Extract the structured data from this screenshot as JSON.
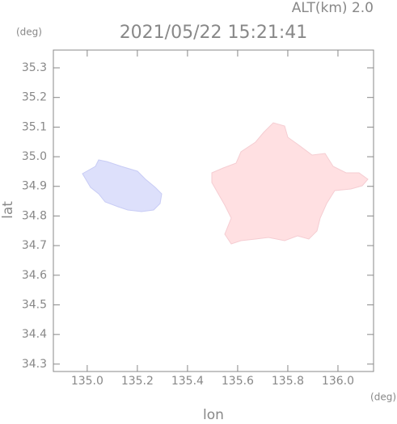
{
  "chart_data": {
    "type": "map",
    "title": "2021/05/22 15:21:41",
    "subtitle": "ALT(km) 2.0",
    "xlabel": "lon",
    "ylabel": "lat",
    "xunit": "(deg)",
    "yunit": "(deg)",
    "xlim": [
      134.865,
      136.142
    ],
    "ylim": [
      34.275,
      35.36
    ],
    "xticks": [
      {
        "value": 135,
        "label": "135.0"
      },
      135.2,
      135.4,
      135.6,
      135.8,
      {
        "value": 136,
        "label": "136.0"
      }
    ],
    "yticks": [
      34.3,
      34.4,
      34.5,
      34.6,
      34.7,
      34.8,
      34.9,
      {
        "value": 35,
        "label": "35.0"
      },
      35.1,
      35.2,
      35.3
    ]
  }
}
